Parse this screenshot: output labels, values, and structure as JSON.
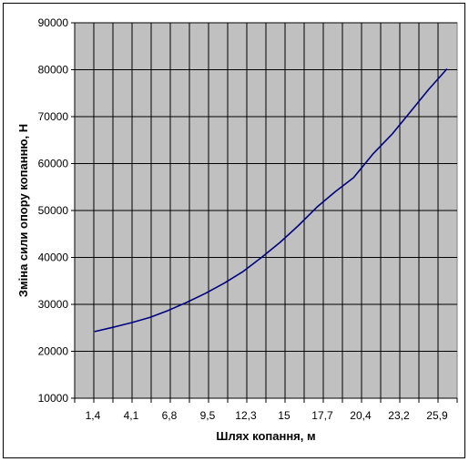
{
  "chart_data": {
    "type": "line",
    "title": "",
    "xlabel": "Шлях копання, м",
    "ylabel": "Зміна сили опору копанню, Н",
    "ylim": [
      10000,
      90000
    ],
    "y_ticks": [
      "10000",
      "20000",
      "30000",
      "40000",
      "50000",
      "60000",
      "70000",
      "80000",
      "90000"
    ],
    "x_tick_labels": [
      "1,4",
      "4,1",
      "6,8",
      "9,5",
      "12,3",
      "15",
      "17,7",
      "20,4",
      "23,2",
      "25,9"
    ],
    "grid": true,
    "legend": "none",
    "colors": {
      "plot_background": "#c0c0c0",
      "line": "#000080",
      "grid": "#000000"
    },
    "series": [
      {
        "x": [
          1.4,
          2.75,
          4.1,
          5.45,
          6.8,
          8.15,
          9.5,
          10.9,
          12.3,
          13.65,
          15,
          16.35,
          17.7,
          19.05,
          20.4,
          21.8,
          23.2,
          24.55,
          25.9,
          27.25
        ],
        "values": [
          24200,
          25100,
          26100,
          27200,
          28700,
          30400,
          32300,
          34500,
          37000,
          40000,
          43200,
          46800,
          50700,
          54000,
          57000,
          62000,
          66200,
          71000,
          75800,
          80200
        ]
      }
    ]
  }
}
